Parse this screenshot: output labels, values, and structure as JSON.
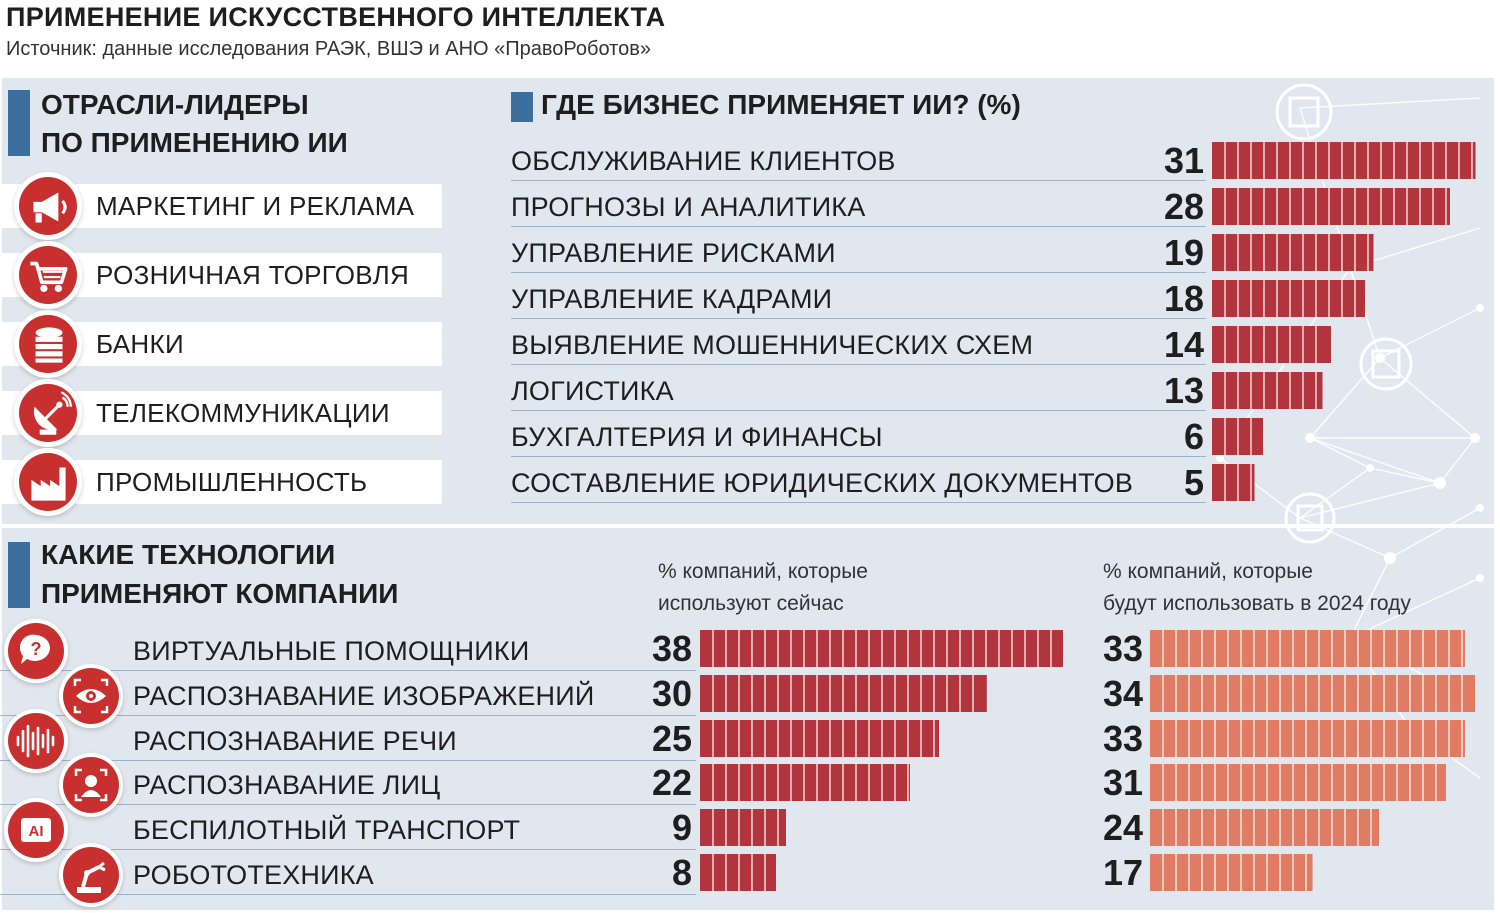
{
  "header": {
    "title": "ПРИМЕНЕНИЕ ИСКУССТВЕННОГО ИНТЕЛЛЕКТА",
    "source": "Источник: данные исследования РАЭК, ВШЭ и АНО «ПравоРоботов»"
  },
  "industries": {
    "title_line1": "ОТРАСЛИ-ЛИДЕРЫ",
    "title_line2": "ПО ПРИМЕНЕНИЮ ИИ",
    "items": [
      {
        "label": "МАРКЕТИНГ И РЕКЛАМА",
        "icon": "megaphone-icon"
      },
      {
        "label": "РОЗНИЧНАЯ ТОРГОВЛЯ",
        "icon": "shopping-cart-icon"
      },
      {
        "label": "БАНКИ",
        "icon": "coins-icon"
      },
      {
        "label": "ТЕЛЕКОММУНИКАЦИИ",
        "icon": "satellite-dish-icon"
      },
      {
        "label": "ПРОМЫШЛЕННОСТЬ",
        "icon": "factory-icon"
      }
    ]
  },
  "colors": {
    "bar_now": "#b2353e",
    "bar_2024": "#e07b64",
    "accent_icon": "#c8302f",
    "section_marker": "#3d6f9e",
    "panel_bg": "#e1e7ee"
  },
  "chart_data": [
    {
      "type": "bar",
      "orientation": "horizontal",
      "title": "ГДЕ БИЗНЕС ПРИМЕНЯЕТ ИИ? (%)",
      "categories": [
        "ОБСЛУЖИВАНИЕ КЛИЕНТОВ",
        "ПРОГНОЗЫ И АНАЛИТИКА",
        "УПРАВЛЕНИЕ РИСКАМИ",
        "УПРАВЛЕНИЕ КАДРАМИ",
        "ВЫЯВЛЕНИЕ МОШЕННИЧЕСКИХ СХЕМ",
        "ЛОГИСТИКА",
        "БУХГАЛТЕРИЯ И ФИНАНСЫ",
        "СОСТАВЛЕНИЕ ЮРИДИЧЕСКИХ ДОКУМЕНТОВ"
      ],
      "values": [
        31,
        28,
        19,
        18,
        14,
        13,
        6,
        5
      ]
    },
    {
      "type": "bar",
      "orientation": "horizontal",
      "title_line1": "КАКИЕ ТЕХНОЛОГИИ",
      "title_line2": "ПРИМЕНЯЮТ КОМПАНИИ",
      "categories": [
        "ВИРТУАЛЬНЫЕ ПОМОЩНИКИ",
        "РАСПОЗНАВАНИЕ ИЗОБРАЖЕНИЙ",
        "РАСПОЗНАВАНИЕ РЕЧИ",
        "РАСПОЗНАВАНИЕ ЛИЦ",
        "БЕСПИЛОТНЫЙ ТРАНСПОРТ",
        "РОБОТОТЕХНИКА"
      ],
      "icons": [
        "question-bubble-icon",
        "eye-scan-icon",
        "sound-wave-icon",
        "face-scan-icon",
        "ai-chip-icon",
        "robot-arm-icon"
      ],
      "series": [
        {
          "name_line1": "% компаний, которые",
          "name_line2": "используют сейчас",
          "values": [
            38,
            30,
            25,
            22,
            9,
            8
          ]
        },
        {
          "name_line1": "% компаний, которые",
          "name_line2": "будут использовать в 2024 году",
          "values": [
            33,
            34,
            33,
            31,
            24,
            17
          ]
        }
      ]
    }
  ]
}
